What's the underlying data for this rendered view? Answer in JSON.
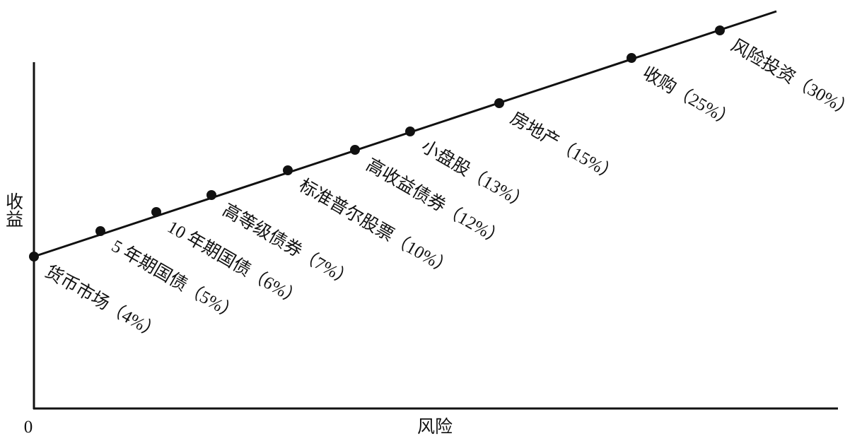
{
  "axes": {
    "x_label": "风险",
    "y_label": "收益",
    "origin": "0"
  },
  "nodes": [
    {
      "label": "货币市场（4%）"
    },
    {
      "label": "5 年期国债（5%）"
    },
    {
      "label": "10 年期国债（6%）"
    },
    {
      "label": "高等级债券（7%）"
    },
    {
      "label": "标准普尔股票（10%）"
    },
    {
      "label": "高收益债券（12%）"
    },
    {
      "label": "小盘股（13%）"
    },
    {
      "label": "房地产（15%）"
    },
    {
      "label": "收购（25%）"
    },
    {
      "label": "风险投资（30%）"
    }
  ]
}
